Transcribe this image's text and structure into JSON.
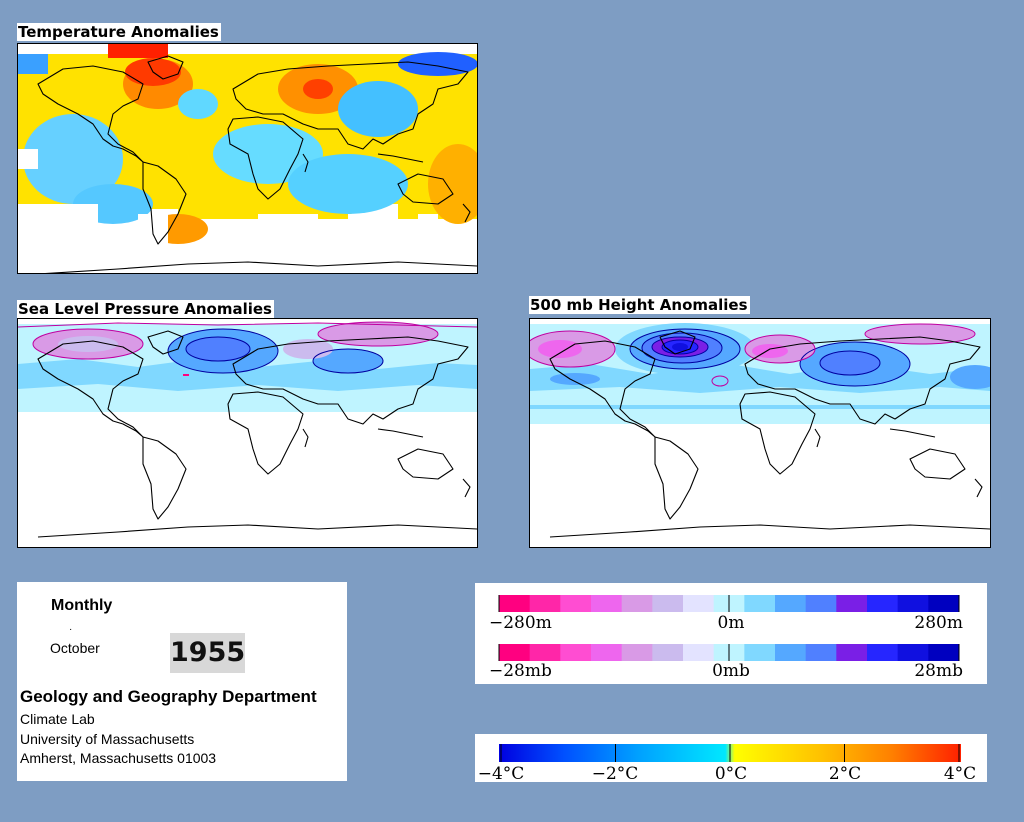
{
  "panels": {
    "temperature": {
      "title": "Temperature Anomalies"
    },
    "slp": {
      "title": "Sea Level Pressure Anomalies"
    },
    "height": {
      "title": "500 mb Height Anomalies"
    }
  },
  "info": {
    "period": "Monthly",
    "dot": "·",
    "month": "October",
    "year": "1955",
    "department": "Geology and Geography Department",
    "lab": "Climate Lab",
    "university": "University of Massachusetts",
    "address": "Amherst, Massachusetts 01003"
  },
  "legends": {
    "height": {
      "left": "−280m",
      "mid": "0m",
      "right": "280m"
    },
    "pressure": {
      "left": "−28mb",
      "mid": "0mb",
      "right": "28mb"
    },
    "temperature": {
      "ticks": [
        "−4°C",
        "−2°C",
        "0°C",
        "2°C",
        "4°C"
      ]
    }
  },
  "colors": {
    "background": "#7e9dc3",
    "anomaly_scale": [
      "#ff0080",
      "#ff26a8",
      "#ff4dd2",
      "#ee66ee",
      "#d99ae6",
      "#cbbbee",
      "#e3e3ff",
      "#bff4ff",
      "#80d8ff",
      "#55a8ff",
      "#5080ff",
      "#7a1fe6",
      "#2626ff",
      "#1010e0",
      "#0000c0"
    ],
    "temperature_scale": [
      "#0000e0",
      "#0050ff",
      "#00a0ff",
      "#00e8ff",
      "#ffff00",
      "#ffc000",
      "#ff8000",
      "#ff2000"
    ]
  }
}
